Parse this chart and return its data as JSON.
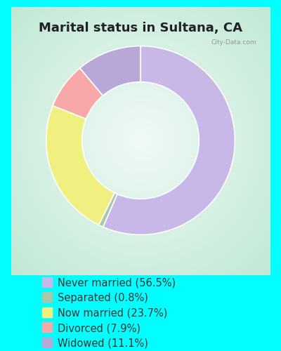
{
  "title": "Marital status in Sultana, CA",
  "slices": [
    {
      "label": "Never married (56.5%)",
      "value": 56.5,
      "color": "#C8B8E8"
    },
    {
      "label": "Separated (0.8%)",
      "value": 0.8,
      "color": "#A8C8A8"
    },
    {
      "label": "Now married (23.7%)",
      "value": 23.7,
      "color": "#F0F080"
    },
    {
      "label": "Divorced (7.9%)",
      "value": 7.9,
      "color": "#F8A8A8"
    },
    {
      "label": "Widowed (11.1%)",
      "value": 11.1,
      "color": "#B8A8D8"
    }
  ],
  "bg_outer": "#00FFFF",
  "title_color": "#222222",
  "legend_text_color": "#333333",
  "title_fontsize": 13,
  "legend_fontsize": 10.5,
  "donut_width": 0.38,
  "start_angle": 90
}
